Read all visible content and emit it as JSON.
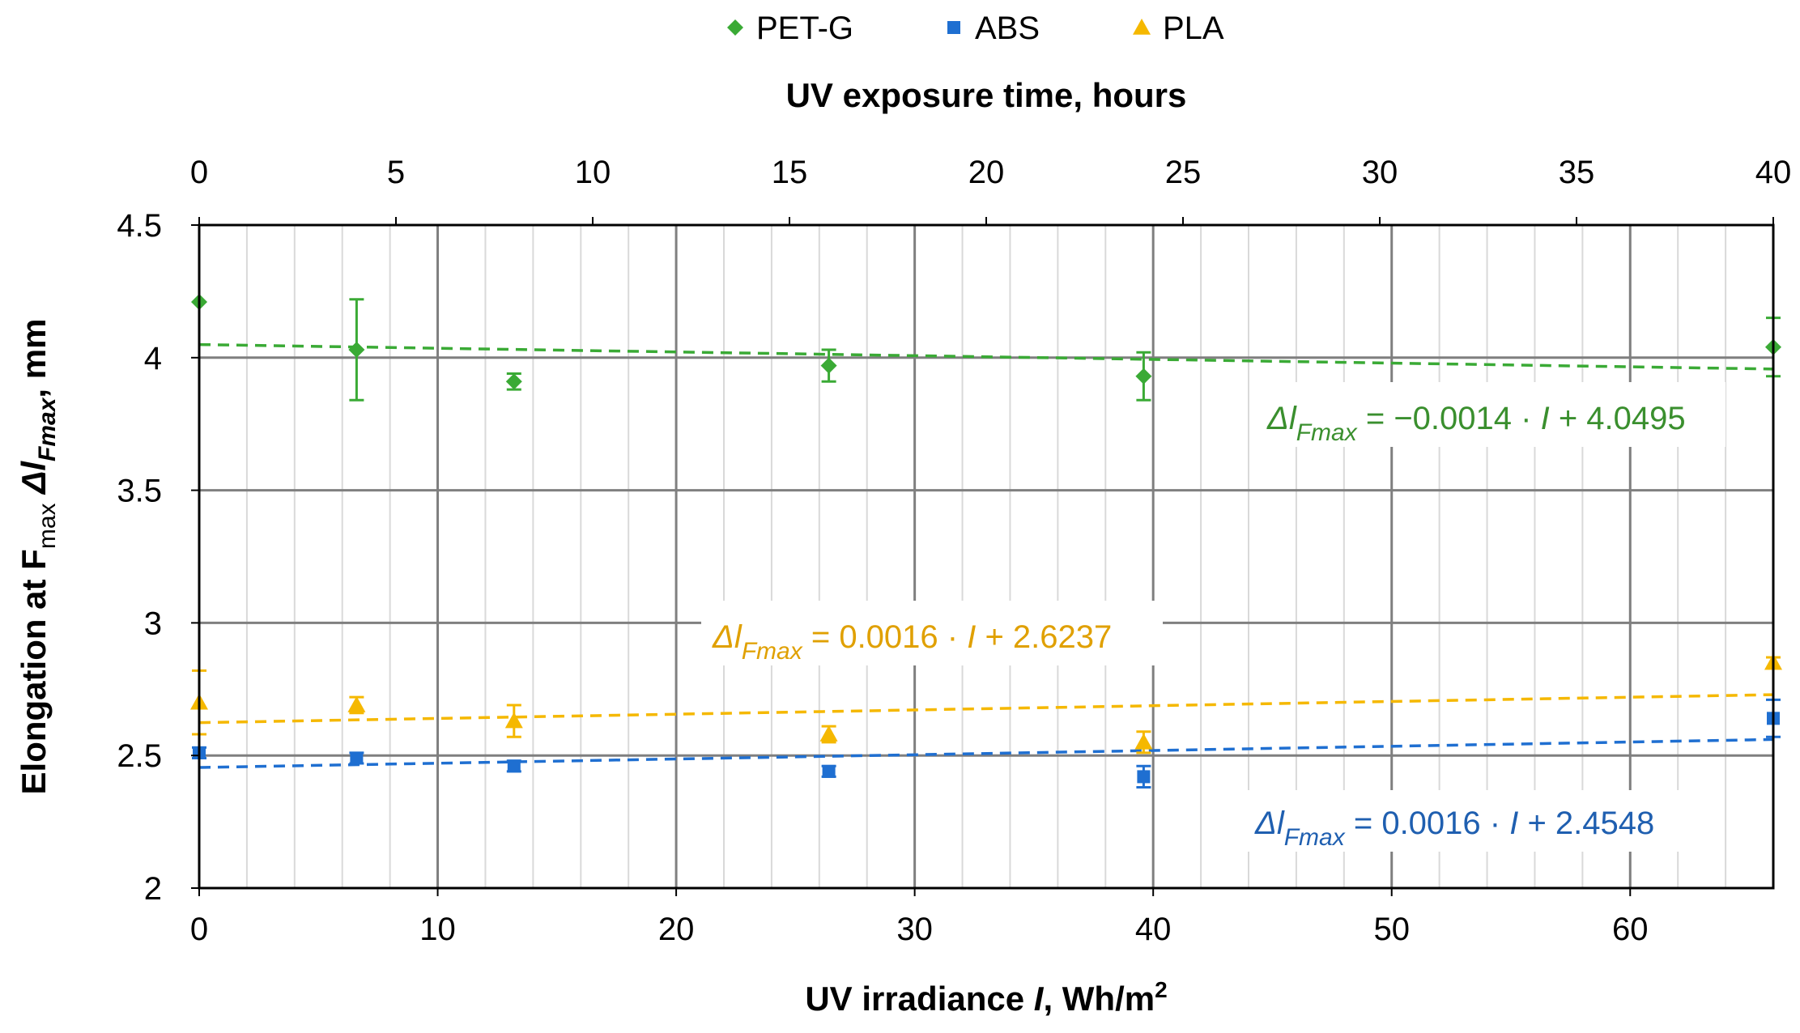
{
  "chart_data": {
    "type": "scatter",
    "title": "",
    "legend_position": "top-center",
    "x_bottom": {
      "label_prefix": "UV irradiance ",
      "label_var": "I",
      "label_suffix": ", Wh/m",
      "label_sup": "2",
      "range": [
        0,
        66
      ],
      "ticks": [
        "0",
        "10",
        "20",
        "30",
        "40",
        "50",
        "60"
      ],
      "tick_values": [
        0,
        10,
        20,
        30,
        40,
        50,
        60
      ]
    },
    "x_top": {
      "label": "UV exposure time, hours",
      "range": [
        0,
        40
      ],
      "ticks": [
        "0",
        "5",
        "10",
        "15",
        "20",
        "25",
        "30",
        "35",
        "40"
      ],
      "tick_values": [
        0,
        5,
        10,
        15,
        20,
        25,
        30,
        35,
        40
      ]
    },
    "y": {
      "label_prefix": "Elongation at F",
      "label_sub": "max",
      "label_delta": " Δl",
      "label_delta_sub": "Fmax",
      "label_suffix": ", mm",
      "range": [
        2,
        4.5
      ],
      "ticks": [
        "2",
        "2.5",
        "3",
        "3.5",
        "4",
        "4.5"
      ],
      "tick_values": [
        2,
        2.5,
        3,
        3.5,
        4,
        4.5
      ]
    },
    "grid": true,
    "series": [
      {
        "name": "PET-G",
        "marker": "diamond",
        "color": "#3aaa35",
        "eq_color": "#3a8f2e",
        "x": [
          0,
          6.6,
          13.2,
          26.4,
          39.6,
          66
        ],
        "y": [
          4.21,
          4.03,
          3.91,
          3.97,
          3.93,
          4.04
        ],
        "err": [
          0.0,
          0.19,
          0.03,
          0.06,
          0.09,
          0.11
        ],
        "trend": {
          "slope": -0.0014,
          "intercept": 4.0495
        },
        "equation": {
          "lhs": "Δl",
          "sub": "Fmax",
          "rhs_pre": " = −0.0014 · ",
          "var": "I",
          "rhs_post": " + 4.0495"
        }
      },
      {
        "name": "ABS",
        "marker": "square",
        "color": "#1f6fd1",
        "eq_color": "#1f5fb0",
        "x": [
          0,
          6.6,
          13.2,
          26.4,
          39.6,
          66
        ],
        "y": [
          2.51,
          2.49,
          2.46,
          2.44,
          2.42,
          2.64
        ],
        "err": [
          0.02,
          0.02,
          0.02,
          0.02,
          0.04,
          0.07
        ],
        "trend": {
          "slope": 0.0016,
          "intercept": 2.4548
        },
        "equation": {
          "lhs": "Δl",
          "sub": "Fmax",
          "rhs_pre": " = 0.0016 · ",
          "var": "I",
          "rhs_post": " + 2.4548"
        }
      },
      {
        "name": "PLA",
        "marker": "triangle",
        "color": "#f5b800",
        "eq_color": "#e0a000",
        "x": [
          0,
          6.6,
          13.2,
          26.4,
          39.6,
          66
        ],
        "y": [
          2.7,
          2.69,
          2.63,
          2.58,
          2.55,
          2.85
        ],
        "err": [
          0.12,
          0.03,
          0.06,
          0.03,
          0.04,
          0.02
        ],
        "trend": {
          "slope": 0.0016,
          "intercept": 2.6237
        },
        "equation": {
          "lhs": "Δl",
          "sub": "Fmax",
          "rhs_pre": " = 0.0016 · ",
          "var": "I",
          "rhs_post": " + 2.6237"
        }
      }
    ]
  }
}
